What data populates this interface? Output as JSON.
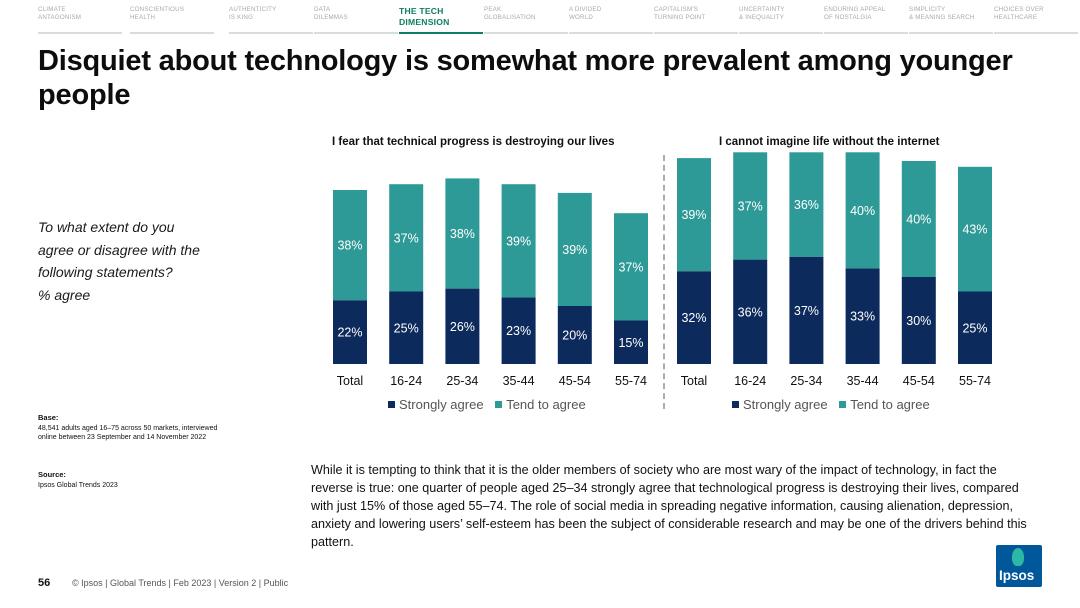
{
  "nav": [
    {
      "label": "CLIMATE\nANTAGONISM",
      "active": false
    },
    {
      "label": "CONSCIENTIOUS\nHEALTH",
      "active": false
    },
    {
      "label": "AUTHENTICITY\nIS KING",
      "active": false
    },
    {
      "label": "DATA\nDILEMMAS",
      "active": false
    },
    {
      "label": "THE TECH\nDIMENSION",
      "active": true
    },
    {
      "label": "PEAK\nGLOBALISATION",
      "active": false
    },
    {
      "label": "A DIVIDED\nWORLD",
      "active": false
    },
    {
      "label": "CAPITALISM'S\nTURNING POINT",
      "active": false
    },
    {
      "label": "UNCERTAINTY\n& INEQUALITY",
      "active": false
    },
    {
      "label": "ENDURING APPEAL\nOF NOSTALGIA",
      "active": false
    },
    {
      "label": "SIMPLICITY\n& MEANING SEARCH",
      "active": false
    },
    {
      "label": "CHOICES OVER\nHEALTHCARE",
      "active": false
    }
  ],
  "title": "Disquiet about technology is somewhat more prevalent among younger people",
  "question_lines": [
    "To what extent do you",
    "agree or disagree with the",
    "following statements?",
    "% agree"
  ],
  "base": {
    "label": "Base:",
    "text": "48,541 adults aged 16–75 across 50 markets, interviewed online between 23 September and 14 November 2022"
  },
  "source": {
    "label": "Source:",
    "text": "Ipsos Global Trends 2023"
  },
  "colors": {
    "strongly_agree": "#0d2a5c",
    "tend_to_agree": "#2e9a97",
    "accent": "#0f7d63"
  },
  "chart_data": [
    {
      "type": "bar",
      "stacked": true,
      "title": "I fear that technical progress is destroying our lives",
      "categories": [
        "Total",
        "16-24",
        "25-34",
        "35-44",
        "45-54",
        "55-74"
      ],
      "series": [
        {
          "name": "Strongly agree",
          "values": [
            22,
            25,
            26,
            23,
            20,
            15
          ]
        },
        {
          "name": "Tend to agree",
          "values": [
            38,
            37,
            38,
            39,
            39,
            37
          ]
        }
      ],
      "value_suffix": "%",
      "legend": "bottom"
    },
    {
      "type": "bar",
      "stacked": true,
      "title": "I cannot imagine life without the internet",
      "categories": [
        "Total",
        "16-24",
        "25-34",
        "35-44",
        "45-54",
        "55-74"
      ],
      "series": [
        {
          "name": "Strongly agree",
          "values": [
            32,
            36,
            37,
            33,
            30,
            25
          ]
        },
        {
          "name": "Tend to agree",
          "values": [
            39,
            37,
            36,
            40,
            40,
            43
          ]
        }
      ],
      "value_suffix": "%",
      "legend": "bottom"
    }
  ],
  "body_text": "While it is tempting to think that it is the older members of society who are most wary of the impact of technology, in fact the reverse is true: one quarter of people aged 25–34 strongly agree that technological progress is destroying their lives, compared with just 15% of those aged 55–74. The role of social media in spreading negative information, causing alienation, depression, anxiety and lowering users’ self-esteem has been the subject of considerable research and may be one of the drivers behind this pattern.",
  "footer": {
    "page": "56",
    "text": "© Ipsos | Global Trends | Feb 2023 | Version 2 | Public"
  },
  "logo": {
    "word": "Ipsos"
  }
}
